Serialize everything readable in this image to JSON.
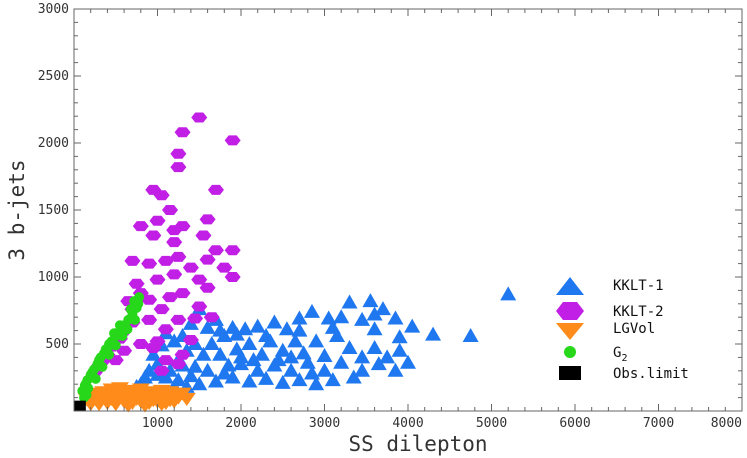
{
  "chart_data": {
    "type": "scatter",
    "xlabel": "SS dilepton",
    "ylabel": "3 b-jets",
    "xlim": [
      0,
      8000
    ],
    "ylim": [
      0,
      3000
    ],
    "xticks": [
      1000,
      2000,
      3000,
      4000,
      5000,
      6000,
      7000,
      8000
    ],
    "yticks": [
      500,
      1000,
      1500,
      2000,
      2500,
      3000
    ],
    "grid": false,
    "legend_position": "lower-right",
    "series": [
      {
        "name": "KKLT-1",
        "color": "#1f78ef",
        "marker": "triangle-up",
        "points": [
          [
            5200,
            870
          ],
          [
            4750,
            560
          ],
          [
            4300,
            570
          ],
          [
            4050,
            630
          ],
          [
            3850,
            690
          ],
          [
            3700,
            760
          ],
          [
            3550,
            820
          ],
          [
            3300,
            810
          ],
          [
            3450,
            680
          ],
          [
            3600,
            610
          ],
          [
            3200,
            700
          ],
          [
            3050,
            690
          ],
          [
            2850,
            740
          ],
          [
            2700,
            690
          ],
          [
            2550,
            610
          ],
          [
            2400,
            660
          ],
          [
            2200,
            630
          ],
          [
            2050,
            610
          ],
          [
            1950,
            570
          ],
          [
            1800,
            560
          ],
          [
            1700,
            680
          ],
          [
            1600,
            620
          ],
          [
            1500,
            760
          ],
          [
            1400,
            650
          ],
          [
            1300,
            560
          ],
          [
            1200,
            520
          ],
          [
            1100,
            580
          ],
          [
            1050,
            490
          ],
          [
            950,
            420
          ],
          [
            1000,
            350
          ],
          [
            900,
            300
          ],
          [
            850,
            250
          ],
          [
            800,
            200
          ],
          [
            750,
            180
          ],
          [
            1150,
            300
          ],
          [
            1250,
            380
          ],
          [
            1350,
            450
          ],
          [
            1450,
            330
          ],
          [
            1550,
            420
          ],
          [
            1650,
            500
          ],
          [
            1750,
            420
          ],
          [
            1850,
            340
          ],
          [
            1950,
            460
          ],
          [
            2100,
            500
          ],
          [
            2250,
            420
          ],
          [
            2350,
            520
          ],
          [
            2500,
            450
          ],
          [
            2650,
            520
          ],
          [
            2750,
            430
          ],
          [
            2900,
            520
          ],
          [
            3000,
            410
          ],
          [
            3150,
            560
          ],
          [
            3300,
            470
          ],
          [
            3450,
            400
          ],
          [
            3600,
            470
          ],
          [
            3750,
            400
          ],
          [
            3900,
            450
          ],
          [
            4000,
            360
          ],
          [
            3850,
            300
          ],
          [
            3650,
            350
          ],
          [
            3450,
            300
          ],
          [
            3200,
            360
          ],
          [
            3000,
            300
          ],
          [
            2800,
            360
          ],
          [
            2600,
            300
          ],
          [
            2400,
            340
          ],
          [
            2200,
            300
          ],
          [
            2000,
            350
          ],
          [
            1800,
            280
          ],
          [
            1600,
            300
          ],
          [
            1400,
            260
          ],
          [
            1250,
            230
          ],
          [
            1500,
            200
          ],
          [
            1700,
            220
          ],
          [
            1900,
            250
          ],
          [
            2100,
            220
          ],
          [
            2300,
            240
          ],
          [
            2500,
            210
          ],
          [
            2700,
            230
          ],
          [
            2900,
            200
          ],
          [
            3100,
            230
          ],
          [
            2600,
            400
          ],
          [
            2300,
            560
          ],
          [
            1900,
            620
          ],
          [
            2000,
            400
          ],
          [
            2150,
            380
          ],
          [
            2450,
            380
          ],
          [
            2850,
            280
          ],
          [
            3350,
            250
          ],
          [
            1300,
            340
          ],
          [
            1100,
            250
          ],
          [
            1200,
            180
          ],
          [
            1450,
            500
          ],
          [
            1750,
            600
          ],
          [
            2700,
            600
          ],
          [
            3600,
            720
          ],
          [
            3100,
            620
          ],
          [
            3900,
            550
          ],
          [
            1000,
            270
          ],
          [
            1350,
            180
          ]
        ]
      },
      {
        "name": "KKLT-2",
        "color": "#c21fe6",
        "marker": "hexagon",
        "points": [
          [
            1500,
            2190
          ],
          [
            1900,
            2020
          ],
          [
            1300,
            2080
          ],
          [
            1250,
            1920
          ],
          [
            1250,
            1820
          ],
          [
            950,
            1650
          ],
          [
            1050,
            1610
          ],
          [
            1700,
            1650
          ],
          [
            1150,
            1500
          ],
          [
            1600,
            1430
          ],
          [
            800,
            1380
          ],
          [
            1000,
            1420
          ],
          [
            950,
            1310
          ],
          [
            1200,
            1350
          ],
          [
            1300,
            1380
          ],
          [
            1200,
            1260
          ],
          [
            1550,
            1310
          ],
          [
            1250,
            1150
          ],
          [
            1700,
            1200
          ],
          [
            1900,
            1200
          ],
          [
            700,
            1120
          ],
          [
            900,
            1100
          ],
          [
            1100,
            1120
          ],
          [
            1600,
            1130
          ],
          [
            1800,
            1070
          ],
          [
            1900,
            1000
          ],
          [
            1000,
            980
          ],
          [
            750,
            950
          ],
          [
            1200,
            1020
          ],
          [
            1400,
            1070
          ],
          [
            1500,
            980
          ],
          [
            1300,
            880
          ],
          [
            1600,
            920
          ],
          [
            1150,
            850
          ],
          [
            900,
            830
          ],
          [
            800,
            880
          ],
          [
            650,
            820
          ],
          [
            700,
            760
          ],
          [
            1050,
            760
          ],
          [
            1250,
            680
          ],
          [
            1450,
            690
          ],
          [
            1650,
            700
          ],
          [
            900,
            680
          ],
          [
            600,
            600
          ],
          [
            700,
            660
          ],
          [
            550,
            540
          ],
          [
            450,
            480
          ],
          [
            400,
            420
          ],
          [
            350,
            380
          ],
          [
            300,
            340
          ],
          [
            250,
            290
          ],
          [
            1100,
            610
          ],
          [
            1000,
            520
          ],
          [
            1400,
            530
          ],
          [
            1300,
            420
          ],
          [
            1100,
            380
          ],
          [
            1050,
            300
          ],
          [
            1250,
            350
          ],
          [
            950,
            470
          ],
          [
            600,
            450
          ],
          [
            800,
            500
          ],
          [
            500,
            380
          ],
          [
            1500,
            780
          ]
        ]
      },
      {
        "name": "LGVol",
        "color": "#ff8c1a",
        "marker": "triangle-down",
        "points": [
          [
            150,
            90
          ],
          [
            200,
            110
          ],
          [
            250,
            130
          ],
          [
            300,
            100
          ],
          [
            350,
            140
          ],
          [
            400,
            120
          ],
          [
            450,
            160
          ],
          [
            500,
            130
          ],
          [
            550,
            170
          ],
          [
            600,
            140
          ],
          [
            650,
            110
          ],
          [
            700,
            150
          ],
          [
            750,
            120
          ],
          [
            800,
            160
          ],
          [
            850,
            130
          ],
          [
            900,
            100
          ],
          [
            950,
            140
          ],
          [
            1000,
            120
          ],
          [
            1050,
            150
          ],
          [
            1100,
            110
          ],
          [
            1150,
            140
          ],
          [
            1200,
            120
          ],
          [
            1250,
            100
          ],
          [
            1300,
            130
          ],
          [
            1350,
            90
          ],
          [
            400,
            60
          ],
          [
            500,
            50
          ],
          [
            600,
            70
          ],
          [
            700,
            60
          ],
          [
            800,
            70
          ],
          [
            900,
            60
          ],
          [
            1000,
            70
          ],
          [
            1100,
            60
          ],
          [
            1200,
            70
          ],
          [
            300,
            50
          ],
          [
            200,
            50
          ],
          [
            650,
            40
          ],
          [
            850,
            40
          ],
          [
            1050,
            50
          ],
          [
            450,
            90
          ],
          [
            750,
            90
          ],
          [
            950,
            80
          ],
          [
            550,
            100
          ],
          [
            1150,
            80
          ]
        ]
      },
      {
        "name": "G",
        "name_subscript": "2",
        "color": "#27d81a",
        "marker": "circle",
        "points": [
          [
            100,
            150
          ],
          [
            130,
            190
          ],
          [
            160,
            230
          ],
          [
            200,
            270
          ],
          [
            240,
            310
          ],
          [
            280,
            350
          ],
          [
            320,
            400
          ],
          [
            360,
            430
          ],
          [
            400,
            460
          ],
          [
            450,
            520
          ],
          [
            500,
            560
          ],
          [
            550,
            600
          ],
          [
            600,
            640
          ],
          [
            650,
            680
          ],
          [
            700,
            720
          ],
          [
            750,
            770
          ],
          [
            780,
            850
          ],
          [
            720,
            820
          ],
          [
            680,
            760
          ],
          [
            550,
            640
          ],
          [
            480,
            580
          ],
          [
            420,
            500
          ],
          [
            380,
            460
          ],
          [
            300,
            380
          ],
          [
            220,
            290
          ],
          [
            140,
            200
          ],
          [
            170,
            170
          ],
          [
            260,
            240
          ],
          [
            340,
            330
          ],
          [
            420,
            420
          ],
          [
            500,
            490
          ],
          [
            580,
            560
          ],
          [
            640,
            610
          ],
          [
            730,
            680
          ],
          [
            770,
            800
          ],
          [
            150,
            120
          ],
          [
            120,
            100
          ]
        ]
      },
      {
        "name": "Obs.limit",
        "color": "#000000",
        "marker": "square",
        "points": [
          [
            70,
            40
          ]
        ]
      }
    ]
  }
}
